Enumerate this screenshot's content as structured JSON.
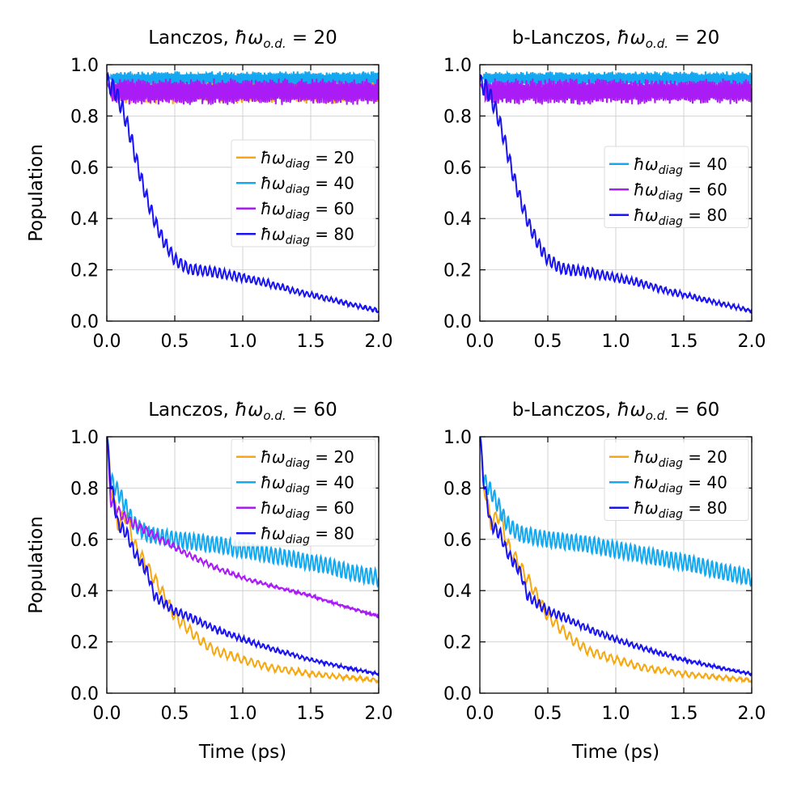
{
  "colors": {
    "w20": "#f5a811",
    "w40": "#14a8f0",
    "w60": "#a91cf5",
    "w80": "#1a14f0"
  },
  "chart_data": [
    {
      "type": "line",
      "title_prefix": "Lanczos, ",
      "title_sym": "ħω",
      "title_sub": "o.d.",
      "title_eq": " = 20",
      "xlabel": "",
      "ylabel": "Population",
      "xlim": [
        0,
        2
      ],
      "ylim": [
        0,
        1
      ],
      "xticks": [
        "0.0",
        "0.5",
        "1.0",
        "1.5",
        "2.0"
      ],
      "yticks": [
        "0.0",
        "0.2",
        "0.4",
        "0.6",
        "0.8",
        "1.0"
      ],
      "legend_position": "center-right",
      "series": [
        {
          "name": "20",
          "color_key": "w20",
          "kind": "osc",
          "base": 0.905,
          "amp": 0.045,
          "freq": 55,
          "noise": 0.015
        },
        {
          "name": "40",
          "color_key": "w40",
          "kind": "osc",
          "base": 0.945,
          "amp": 0.022,
          "freq": 70,
          "noise": 0.008
        },
        {
          "name": "60",
          "color_key": "w60",
          "kind": "osc",
          "base": 0.895,
          "amp": 0.04,
          "freq": 65,
          "noise": 0.012
        },
        {
          "name": "80",
          "color_key": "w80",
          "kind": "decay",
          "knots": [
            [
              0,
              0.93
            ],
            [
              0.06,
              0.9
            ],
            [
              0.12,
              0.82
            ],
            [
              0.18,
              0.71
            ],
            [
              0.24,
              0.58
            ],
            [
              0.3,
              0.47
            ],
            [
              0.36,
              0.38
            ],
            [
              0.42,
              0.31
            ],
            [
              0.5,
              0.24
            ],
            [
              0.6,
              0.205
            ],
            [
              0.8,
              0.19
            ],
            [
              1.0,
              0.17
            ],
            [
              1.2,
              0.145
            ],
            [
              1.4,
              0.115
            ],
            [
              1.6,
              0.09
            ],
            [
              1.8,
              0.065
            ],
            [
              2.0,
              0.04
            ]
          ],
          "osc_amp": 0.035,
          "osc_freq": 28,
          "osc_fade": 0.9
        }
      ],
      "legend_labels": [
        "20",
        "40",
        "60",
        "80"
      ]
    },
    {
      "type": "line",
      "title_prefix": "b-Lanczos, ",
      "title_sym": "ħω",
      "title_sub": "o.d.",
      "title_eq": " = 20",
      "xlabel": "",
      "ylabel": "",
      "xlim": [
        0,
        2
      ],
      "ylim": [
        0,
        1
      ],
      "xticks": [
        "0.0",
        "0.5",
        "1.0",
        "1.5",
        "2.0"
      ],
      "yticks": [
        "0.0",
        "0.2",
        "0.4",
        "0.6",
        "0.8",
        "1.0"
      ],
      "legend_position": "center-right",
      "series": [
        {
          "name": "40",
          "color_key": "w40",
          "kind": "osc",
          "base": 0.945,
          "amp": 0.022,
          "freq": 70,
          "noise": 0.008
        },
        {
          "name": "60",
          "color_key": "w60",
          "kind": "osc",
          "base": 0.895,
          "amp": 0.04,
          "freq": 65,
          "noise": 0.012
        },
        {
          "name": "80",
          "color_key": "w80",
          "kind": "decay",
          "knots": [
            [
              0,
              0.93
            ],
            [
              0.06,
              0.9
            ],
            [
              0.12,
              0.82
            ],
            [
              0.18,
              0.71
            ],
            [
              0.24,
              0.58
            ],
            [
              0.3,
              0.47
            ],
            [
              0.36,
              0.38
            ],
            [
              0.42,
              0.31
            ],
            [
              0.5,
              0.24
            ],
            [
              0.6,
              0.205
            ],
            [
              0.8,
              0.19
            ],
            [
              1.0,
              0.17
            ],
            [
              1.2,
              0.145
            ],
            [
              1.4,
              0.115
            ],
            [
              1.6,
              0.09
            ],
            [
              1.8,
              0.065
            ],
            [
              2.0,
              0.04
            ]
          ],
          "osc_amp": 0.035,
          "osc_freq": 28,
          "osc_fade": 0.9
        }
      ],
      "legend_labels": [
        "40",
        "60",
        "80"
      ]
    },
    {
      "type": "line",
      "title_prefix": "Lanczos, ",
      "title_sym": "ħω",
      "title_sub": "o.d.",
      "title_eq": " = 60",
      "xlabel": "Time (ps)",
      "ylabel": "Population",
      "xlim": [
        0,
        2
      ],
      "ylim": [
        0,
        1
      ],
      "xticks": [
        "0.0",
        "0.5",
        "1.0",
        "1.5",
        "2.0"
      ],
      "yticks": [
        "0.0",
        "0.2",
        "0.4",
        "0.6",
        "0.8",
        "1.0"
      ],
      "legend_position": "top-right",
      "series": [
        {
          "name": "20",
          "color_key": "w20",
          "kind": "decay",
          "knots": [
            [
              0,
              1.0
            ],
            [
              0.03,
              0.82
            ],
            [
              0.08,
              0.66
            ],
            [
              0.15,
              0.7
            ],
            [
              0.2,
              0.58
            ],
            [
              0.3,
              0.49
            ],
            [
              0.4,
              0.4
            ],
            [
              0.5,
              0.3
            ],
            [
              0.6,
              0.25
            ],
            [
              0.7,
              0.2
            ],
            [
              0.8,
              0.165
            ],
            [
              1.0,
              0.13
            ],
            [
              1.2,
              0.1
            ],
            [
              1.5,
              0.075
            ],
            [
              1.8,
              0.06
            ],
            [
              2.0,
              0.05
            ]
          ],
          "osc_amp": 0.03,
          "osc_freq": 20,
          "osc_fade": 0.8
        },
        {
          "name": "40",
          "color_key": "w40",
          "kind": "decay",
          "knots": [
            [
              0,
              1.0
            ],
            [
              0.03,
              0.83
            ],
            [
              0.1,
              0.77
            ],
            [
              0.2,
              0.66
            ],
            [
              0.3,
              0.62
            ],
            [
              0.5,
              0.6
            ],
            [
              0.8,
              0.58
            ],
            [
              1.0,
              0.56
            ],
            [
              1.3,
              0.53
            ],
            [
              1.6,
              0.5
            ],
            [
              1.8,
              0.47
            ],
            [
              2.0,
              0.45
            ]
          ],
          "osc_amp": 0.03,
          "osc_freq": 30,
          "osc_fade": 0
        },
        {
          "name": "60",
          "color_key": "w60",
          "kind": "decay",
          "knots": [
            [
              0,
              1.0
            ],
            [
              0.03,
              0.75
            ],
            [
              0.1,
              0.7
            ],
            [
              0.2,
              0.66
            ],
            [
              0.3,
              0.63
            ],
            [
              0.4,
              0.6
            ],
            [
              0.6,
              0.54
            ],
            [
              0.8,
              0.49
            ],
            [
              1.0,
              0.45
            ],
            [
              1.2,
              0.42
            ],
            [
              1.5,
              0.38
            ],
            [
              1.8,
              0.33
            ],
            [
              2.0,
              0.3
            ]
          ],
          "osc_amp": 0.02,
          "osc_freq": 25,
          "osc_fade": 1.2
        },
        {
          "name": "80",
          "color_key": "w80",
          "kind": "decay",
          "knots": [
            [
              0,
              1.0
            ],
            [
              0.03,
              0.82
            ],
            [
              0.08,
              0.66
            ],
            [
              0.15,
              0.62
            ],
            [
              0.2,
              0.55
            ],
            [
              0.3,
              0.47
            ],
            [
              0.35,
              0.38
            ],
            [
              0.5,
              0.32
            ],
            [
              0.6,
              0.3
            ],
            [
              0.8,
              0.25
            ],
            [
              1.0,
              0.21
            ],
            [
              1.2,
              0.175
            ],
            [
              1.5,
              0.13
            ],
            [
              1.8,
              0.095
            ],
            [
              2.0,
              0.075
            ]
          ],
          "osc_amp": 0.025,
          "osc_freq": 28,
          "osc_fade": 1.0
        }
      ],
      "legend_labels": [
        "20",
        "40",
        "60",
        "80"
      ]
    },
    {
      "type": "line",
      "title_prefix": "b-Lanczos, ",
      "title_sym": "ħω",
      "title_sub": "o.d.",
      "title_eq": " = 60",
      "xlabel": "Time (ps)",
      "ylabel": "",
      "xlim": [
        0,
        2
      ],
      "ylim": [
        0,
        1
      ],
      "xticks": [
        "0.0",
        "0.5",
        "1.0",
        "1.5",
        "2.0"
      ],
      "yticks": [
        "0.0",
        "0.2",
        "0.4",
        "0.6",
        "0.8",
        "1.0"
      ],
      "legend_position": "top-right",
      "series": [
        {
          "name": "20",
          "color_key": "w20",
          "kind": "decay",
          "knots": [
            [
              0,
              1.0
            ],
            [
              0.03,
              0.82
            ],
            [
              0.08,
              0.66
            ],
            [
              0.15,
              0.7
            ],
            [
              0.2,
              0.58
            ],
            [
              0.3,
              0.49
            ],
            [
              0.4,
              0.4
            ],
            [
              0.5,
              0.3
            ],
            [
              0.6,
              0.25
            ],
            [
              0.7,
              0.2
            ],
            [
              0.8,
              0.165
            ],
            [
              1.0,
              0.13
            ],
            [
              1.2,
              0.1
            ],
            [
              1.5,
              0.075
            ],
            [
              1.8,
              0.06
            ],
            [
              2.0,
              0.05
            ]
          ],
          "osc_amp": 0.03,
          "osc_freq": 20,
          "osc_fade": 0.8
        },
        {
          "name": "40",
          "color_key": "w40",
          "kind": "decay",
          "knots": [
            [
              0,
              1.0
            ],
            [
              0.03,
              0.83
            ],
            [
              0.1,
              0.77
            ],
            [
              0.2,
              0.66
            ],
            [
              0.3,
              0.62
            ],
            [
              0.5,
              0.6
            ],
            [
              0.8,
              0.58
            ],
            [
              1.0,
              0.56
            ],
            [
              1.3,
              0.53
            ],
            [
              1.6,
              0.5
            ],
            [
              1.8,
              0.47
            ],
            [
              2.0,
              0.45
            ]
          ],
          "osc_amp": 0.03,
          "osc_freq": 30,
          "osc_fade": 0
        },
        {
          "name": "80",
          "color_key": "w80",
          "kind": "decay",
          "knots": [
            [
              0,
              1.0
            ],
            [
              0.03,
              0.82
            ],
            [
              0.08,
              0.66
            ],
            [
              0.15,
              0.62
            ],
            [
              0.2,
              0.55
            ],
            [
              0.3,
              0.47
            ],
            [
              0.35,
              0.38
            ],
            [
              0.5,
              0.32
            ],
            [
              0.6,
              0.3
            ],
            [
              0.8,
              0.25
            ],
            [
              1.0,
              0.21
            ],
            [
              1.2,
              0.175
            ],
            [
              1.5,
              0.13
            ],
            [
              1.8,
              0.095
            ],
            [
              2.0,
              0.075
            ]
          ],
          "osc_amp": 0.025,
          "osc_freq": 28,
          "osc_fade": 1.0
        }
      ],
      "legend_labels": [
        "20",
        "40",
        "80"
      ]
    }
  ],
  "legend": {
    "sym": "ħω",
    "sub": "diag",
    "eq_prefix": " = "
  }
}
